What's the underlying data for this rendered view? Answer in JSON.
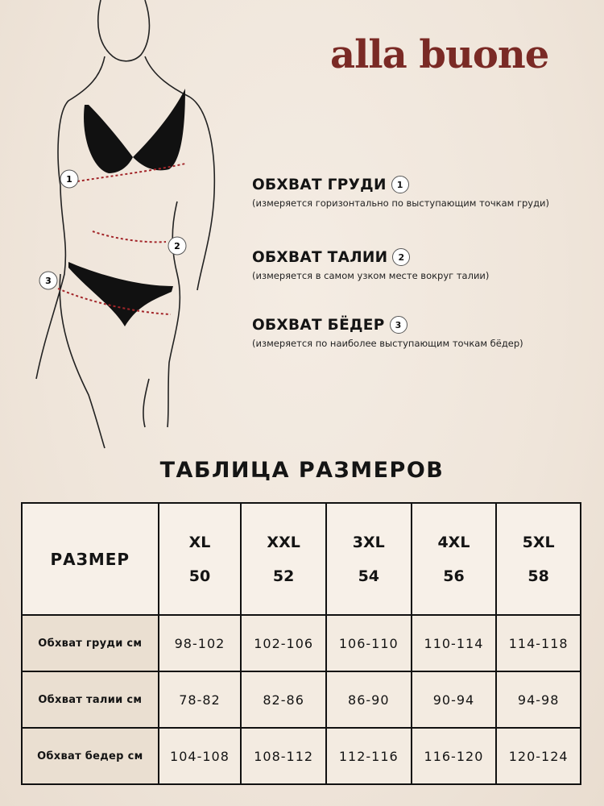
{
  "brand": {
    "logo_text": "alla buone",
    "color": "#7a2a25"
  },
  "measurements": [
    {
      "number": "1",
      "title": "ОБХВАТ ГРУДИ",
      "description": "(измеряется горизонтально по выступающим точкам груди)"
    },
    {
      "number": "2",
      "title": "ОБХВАТ ТАЛИИ",
      "description": "(измеряется в самом узком месте вокруг талии)"
    },
    {
      "number": "3",
      "title": "ОБХВАТ БЁДЕР",
      "description": "(измеряется по наиболее выступающим точкам бёдер)"
    }
  ],
  "table": {
    "title": "ТАБЛИЦА РАЗМЕРОВ",
    "corner": "РАЗМЕР",
    "sizes": [
      {
        "intl": "XL",
        "ru": "50"
      },
      {
        "intl": "XXL",
        "ru": "52"
      },
      {
        "intl": "3XL",
        "ru": "54"
      },
      {
        "intl": "4XL",
        "ru": "56"
      },
      {
        "intl": "5XL",
        "ru": "58"
      }
    ],
    "rows": [
      {
        "label": "Обхват груди см",
        "values": [
          "98-102",
          "102-106",
          "106-110",
          "110-114",
          "114-118"
        ]
      },
      {
        "label": "Обхват талии см",
        "values": [
          "78-82",
          "82-86",
          "86-90",
          "90-94",
          "94-98"
        ]
      },
      {
        "label": "Обхват бедер см",
        "values": [
          "104-108",
          "108-112",
          "112-116",
          "116-120",
          "120-124"
        ]
      }
    ]
  }
}
